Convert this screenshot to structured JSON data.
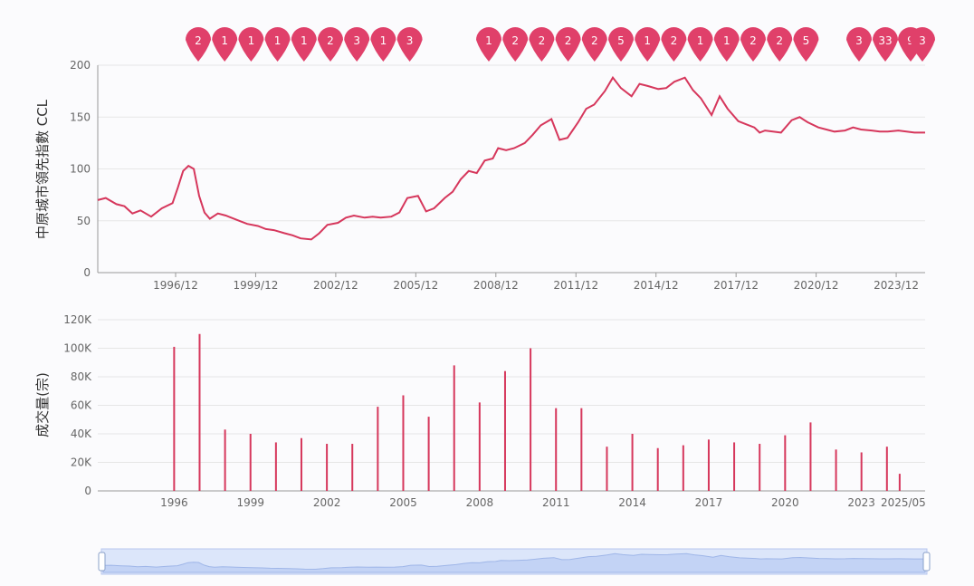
{
  "chart_data": [
    {
      "type": "line",
      "ylabel": "中原城市領先指數 CCL",
      "ylim": [
        0,
        200
      ],
      "yticks": [
        "0",
        "50",
        "100",
        "150",
        "200"
      ],
      "x_range": [
        1994.0,
        2025.0
      ],
      "xtick_labels": [
        "1996/12",
        "1999/12",
        "2002/12",
        "2005/12",
        "2008/12",
        "2011/12",
        "2014/12",
        "2017/12",
        "2020/12",
        "2023/12"
      ],
      "grid": true,
      "color": "#d6375c",
      "x": [
        1994.0,
        1994.3,
        1994.7,
        1995.0,
        1995.3,
        1995.6,
        1996.0,
        1996.4,
        1996.8,
        1997.0,
        1997.2,
        1997.4,
        1997.6,
        1997.8,
        1998.0,
        1998.2,
        1998.5,
        1998.8,
        1999.0,
        1999.3,
        1999.6,
        2000.0,
        2000.3,
        2000.6,
        2001.0,
        2001.3,
        2001.6,
        2002.0,
        2002.3,
        2002.6,
        2003.0,
        2003.3,
        2003.6,
        2004.0,
        2004.3,
        2004.6,
        2005.0,
        2005.3,
        2005.6,
        2006.0,
        2006.3,
        2006.6,
        2007.0,
        2007.3,
        2007.6,
        2007.9,
        2008.2,
        2008.5,
        2008.8,
        2009.0,
        2009.3,
        2009.6,
        2010.0,
        2010.3,
        2010.6,
        2011.0,
        2011.3,
        2011.6,
        2012.0,
        2012.3,
        2012.6,
        2013.0,
        2013.3,
        2013.6,
        2014.0,
        2014.3,
        2014.6,
        2015.0,
        2015.3,
        2015.6,
        2016.0,
        2016.3,
        2016.6,
        2017.0,
        2017.3,
        2017.6,
        2018.0,
        2018.3,
        2018.6,
        2018.8,
        2019.0,
        2019.3,
        2019.6,
        2020.0,
        2020.3,
        2020.6,
        2021.0,
        2021.3,
        2021.6,
        2022.0,
        2022.3,
        2022.6,
        2023.0,
        2023.3,
        2023.6,
        2024.0,
        2024.3,
        2024.6,
        2025.0
      ],
      "y": [
        70,
        72,
        66,
        64,
        57,
        60,
        54,
        62,
        67,
        82,
        98,
        103,
        100,
        74,
        58,
        52,
        57,
        55,
        53,
        50,
        47,
        45,
        42,
        41,
        38,
        36,
        33,
        32,
        38,
        46,
        48,
        53,
        55,
        53,
        54,
        53,
        54,
        58,
        72,
        74,
        59,
        62,
        72,
        78,
        90,
        98,
        96,
        108,
        110,
        120,
        118,
        120,
        125,
        133,
        142,
        148,
        128,
        130,
        145,
        158,
        162,
        175,
        188,
        178,
        170,
        182,
        180,
        177,
        178,
        184,
        188,
        176,
        168,
        152,
        170,
        158,
        146,
        143,
        140,
        135,
        137,
        136,
        135,
        147,
        150,
        145,
        140,
        138,
        136,
        137,
        140,
        138,
        137,
        136,
        136,
        137,
        136,
        135,
        135
      ]
    },
    {
      "type": "bar",
      "ylabel": "成交量(宗)",
      "ylim": [
        0,
        120000
      ],
      "yticks": [
        "0",
        "20K",
        "40K",
        "60K",
        "80K",
        "100K",
        "120K"
      ],
      "x_range": [
        1993.0,
        2025.5
      ],
      "xtick_labels": [
        "1996",
        "1999",
        "2002",
        "2005",
        "2008",
        "2011",
        "2014",
        "2017",
        "2020",
        "2023",
        "2025/05"
      ],
      "color": "#d6375c",
      "x": [
        1996,
        1997,
        1998,
        1999,
        2000,
        2001,
        2002,
        2003,
        2004,
        2005,
        2006,
        2007,
        2008,
        2009,
        2010,
        2011,
        2012,
        2013,
        2014,
        2015,
        2016,
        2017,
        2018,
        2019,
        2020,
        2021,
        2022,
        2023,
        2024,
        2024.5
      ],
      "values": [
        101000,
        110000,
        43000,
        40000,
        34000,
        37000,
        33000,
        33000,
        59000,
        67000,
        52000,
        88000,
        62000,
        84000,
        100000,
        58000,
        58000,
        31000,
        40000,
        30000,
        32000,
        36000,
        34000,
        33000,
        39000,
        48000,
        29000,
        27000,
        31000,
        12000
      ]
    }
  ],
  "markers": [
    "2",
    "1",
    "1",
    "1",
    "1",
    "2",
    "3",
    "1",
    "3",
    "1",
    "2",
    "2",
    "2",
    "2",
    "5",
    "1",
    "2",
    "1",
    "1",
    "2",
    "2",
    "5",
    "3",
    "33",
    "9",
    "3"
  ],
  "marker_color": "#e0406a"
}
